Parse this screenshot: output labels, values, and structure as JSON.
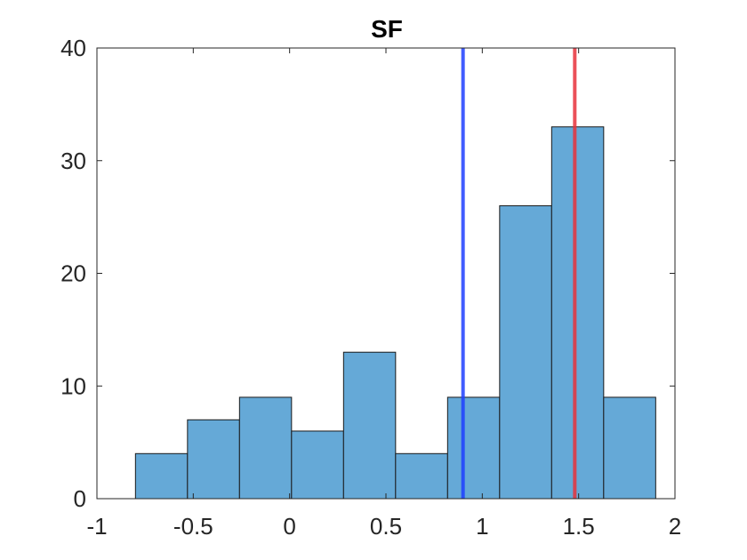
{
  "chart_data": {
    "type": "bar",
    "title": "SF",
    "xlabel": "",
    "ylabel": "",
    "xlim": [
      -1,
      2
    ],
    "ylim": [
      0,
      40
    ],
    "xticks": [
      -1,
      -0.5,
      0,
      0.5,
      1,
      1.5,
      2
    ],
    "yticks": [
      0,
      10,
      20,
      30,
      40
    ],
    "xtick_labels": [
      "-1",
      "-0.5",
      "0",
      "0.5",
      "1",
      "1.5",
      "2"
    ],
    "ytick_labels": [
      "0",
      "10",
      "20",
      "30",
      "40"
    ],
    "grid": false,
    "bin_edges": [
      -0.8,
      -0.53,
      -0.26,
      0.01,
      0.28,
      0.55,
      0.82,
      1.09,
      1.36,
      1.63,
      1.9
    ],
    "counts": [
      4,
      7,
      9,
      6,
      13,
      4,
      9,
      26,
      33,
      9
    ],
    "reference_lines": [
      {
        "x": 0.9,
        "color": "#1f3fff"
      },
      {
        "x": 1.48,
        "color": "#e8323c"
      }
    ],
    "colors": {
      "bar_fill": "#65a9d7",
      "bar_edge": "#1a1a1a",
      "axis": "#262626"
    }
  }
}
